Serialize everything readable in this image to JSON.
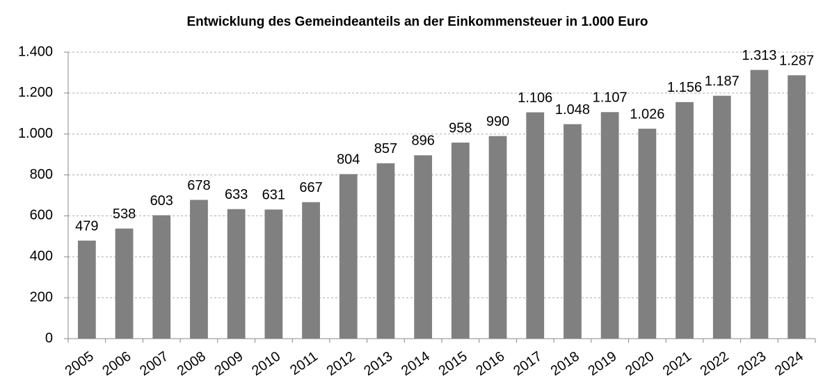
{
  "chart_data": {
    "type": "bar",
    "title": "Entwicklung des Gemeindeanteils an der Einkommensteuer in 1.000 Euro",
    "categories": [
      "2005",
      "2006",
      "2007",
      "2008",
      "2009",
      "2010",
      "2011",
      "2012",
      "2013",
      "2014",
      "2015",
      "2016",
      "2017",
      "2018",
      "2019",
      "2020",
      "2021",
      "2022",
      "2023",
      "2024"
    ],
    "values": [
      479,
      538,
      603,
      678,
      633,
      631,
      667,
      804,
      857,
      896,
      958,
      990,
      1106,
      1048,
      1107,
      1026,
      1156,
      1187,
      1313,
      1287
    ],
    "value_labels": [
      "479",
      "538",
      "603",
      "678",
      "633",
      "631",
      "667",
      "804",
      "857",
      "896",
      "958",
      "990",
      "1.106",
      "1.048",
      "1.107",
      "1.026",
      "1.156",
      "1.187",
      "1.313",
      "1.287"
    ],
    "color": "#808080",
    "ylim": [
      0,
      1400
    ],
    "yticks": [
      0,
      200,
      400,
      600,
      800,
      {
        "value": 1000,
        "label": "1.000"
      },
      {
        "value": 1200,
        "label": "1.200"
      },
      {
        "value": 1400,
        "label": "1.400"
      }
    ],
    "grid": true
  }
}
